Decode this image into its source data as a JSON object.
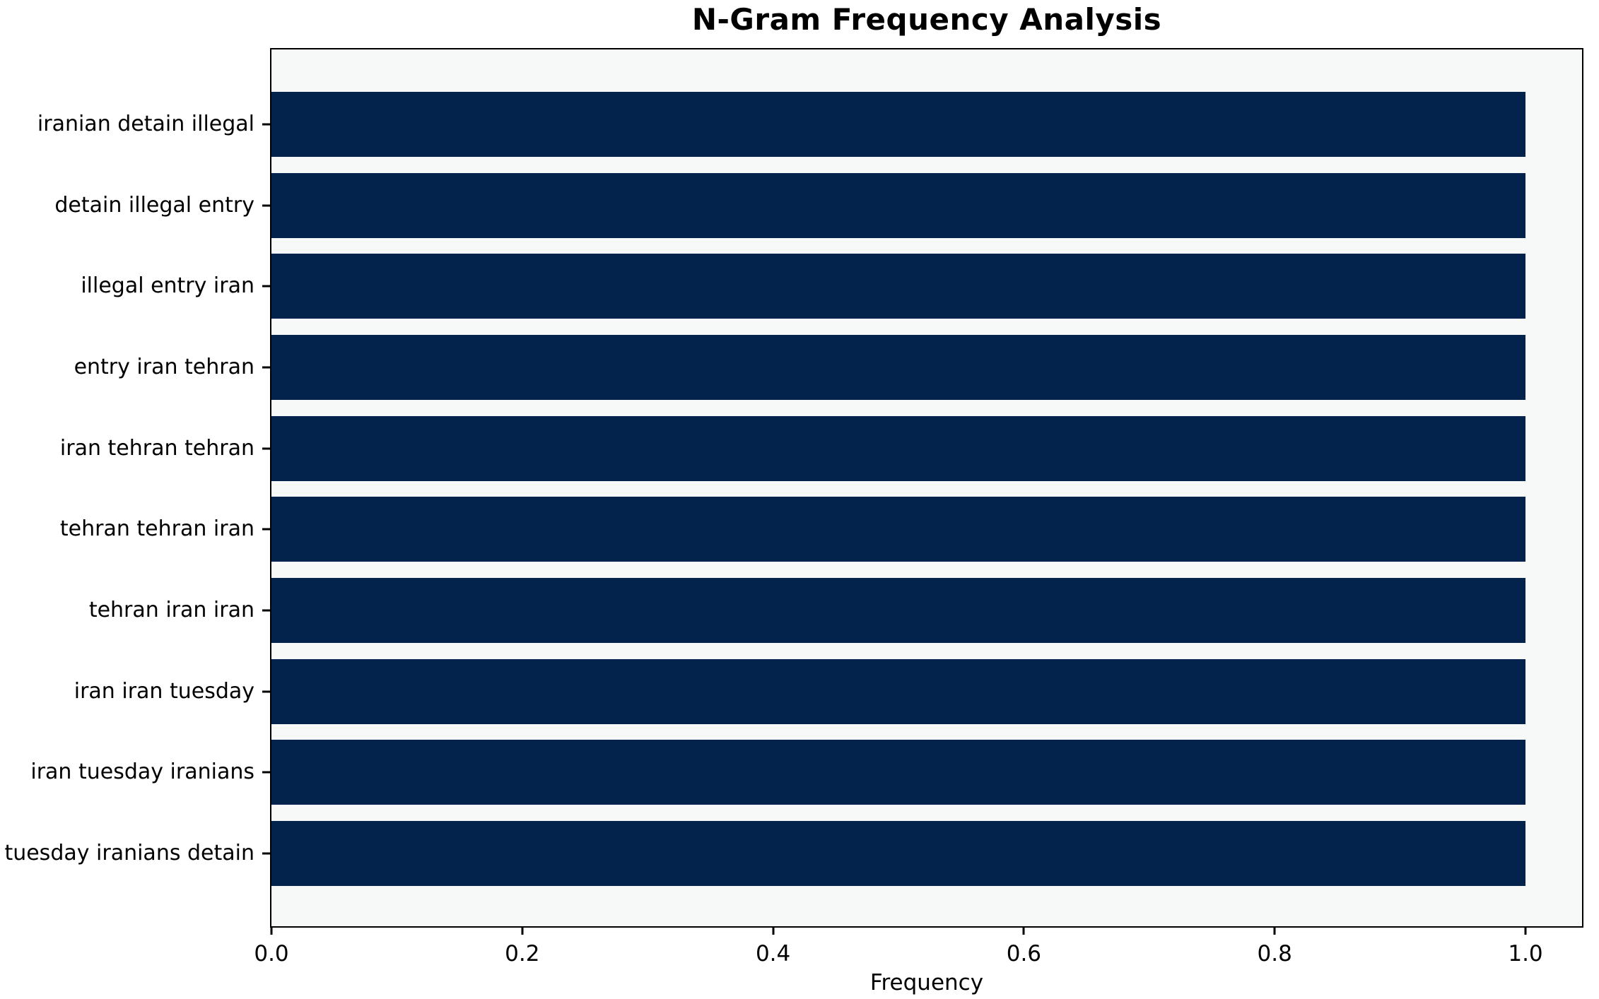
{
  "title": "N-Gram Frequency Analysis",
  "chart_data": {
    "type": "bar",
    "orientation": "horizontal",
    "title": "N-Gram Frequency Analysis",
    "xlabel": "Frequency",
    "ylabel": "",
    "categories": [
      "iranian detain illegal",
      "detain illegal entry",
      "illegal entry iran",
      "entry iran tehran",
      "iran tehran tehran",
      "tehran tehran iran",
      "tehran iran iran",
      "iran iran tuesday",
      "iran tuesday iranians",
      "tuesday iranians detain"
    ],
    "values": [
      1.0,
      1.0,
      1.0,
      1.0,
      1.0,
      1.0,
      1.0,
      1.0,
      1.0,
      1.0
    ],
    "xlim": [
      0.0,
      1.047
    ],
    "x_ticks": [
      0.0,
      0.2,
      0.4,
      0.6,
      0.8,
      1.0
    ],
    "x_tick_labels": [
      "0.0",
      "0.2",
      "0.4",
      "0.6",
      "0.8",
      "1.0"
    ],
    "grid": false,
    "legend": null,
    "bar_color": "#03234d",
    "plot_background": "#f7f8f8",
    "figure_background": "#ffffff"
  }
}
